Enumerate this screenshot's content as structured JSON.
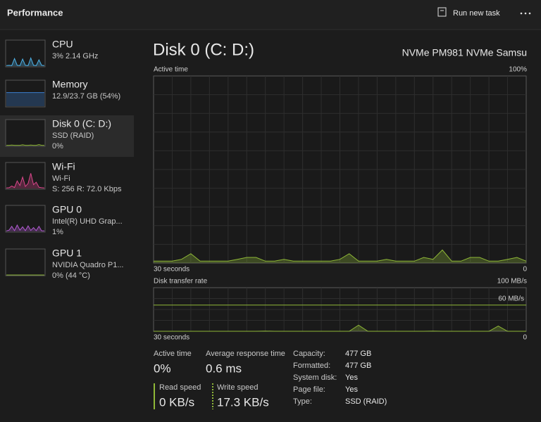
{
  "header": {
    "title": "Performance",
    "run_new_task": "Run new task"
  },
  "sidebar": [
    {
      "name": "CPU",
      "line1": "3% 2.14 GHz",
      "line2": null,
      "color": "#4fb3e8",
      "graph": [
        2,
        3,
        2,
        30,
        3,
        2,
        28,
        3,
        2,
        32,
        3,
        2,
        25,
        3,
        2
      ]
    },
    {
      "name": "Memory",
      "line1": "12.9/23.7 GB (54%)",
      "line2": null,
      "color": "#3b7fd0",
      "graph": [
        54,
        54,
        54,
        54,
        54,
        54,
        54,
        54,
        54,
        54,
        54,
        54,
        54,
        54,
        54
      ]
    },
    {
      "name": "Disk 0 (C: D:)",
      "line1": "SSD (RAID)",
      "line2": "0%",
      "color": "#8fb837",
      "graph": [
        1,
        1,
        2,
        1,
        1,
        1,
        3,
        1,
        1,
        2,
        1,
        1,
        4,
        1,
        1
      ]
    },
    {
      "name": "Wi-Fi",
      "line1": "Wi-Fi",
      "line2": "S: 256 R: 72.0 Kbps",
      "color": "#d9468a",
      "graph": [
        2,
        3,
        10,
        4,
        30,
        12,
        45,
        8,
        20,
        60,
        15,
        25,
        5,
        3,
        2
      ]
    },
    {
      "name": "GPU 0",
      "line1": "Intel(R) UHD Grap...",
      "line2": "1%",
      "color": "#b05ad0",
      "graph": [
        2,
        5,
        20,
        3,
        25,
        5,
        18,
        3,
        22,
        4,
        15,
        3,
        20,
        2,
        2
      ]
    },
    {
      "name": "GPU 1",
      "line1": "NVIDIA Quadro P1...",
      "line2": "0% (44 °C)",
      "color": "#8fb837",
      "graph": [
        0,
        0,
        0,
        0,
        0,
        0,
        0,
        0,
        0,
        0,
        0,
        0,
        0,
        0,
        0
      ]
    }
  ],
  "main": {
    "title": "Disk 0 (C: D:)",
    "model": "NVMe PM981 NVMe Samsu",
    "color": "#8fb837",
    "active_time": {
      "label": "Active time",
      "max_label": "100%",
      "duration_label": "30 seconds",
      "min_label": "0",
      "ylim": [
        0,
        100
      ],
      "values": [
        1,
        1,
        1,
        2,
        5,
        1,
        1,
        1,
        1,
        2,
        3,
        3,
        1,
        1,
        2,
        1,
        1,
        1,
        1,
        1,
        2,
        5,
        1,
        1,
        1,
        2,
        1,
        1,
        1,
        3,
        2,
        7,
        1,
        1,
        3,
        3,
        1,
        1,
        2,
        3,
        1
      ]
    },
    "transfer_rate": {
      "label": "Disk transfer rate",
      "max_label": "100 MB/s",
      "scale_label": "60 MB/s",
      "scale_value": 60,
      "duration_label": "30 seconds",
      "min_label": "0",
      "ylim": [
        0,
        100
      ],
      "values": [
        0,
        0,
        0,
        0,
        0,
        0,
        0,
        0,
        0,
        0,
        0,
        0,
        0.5,
        0,
        0,
        0,
        0,
        0,
        0,
        0,
        0,
        0,
        14,
        0,
        0,
        0,
        0,
        0,
        0,
        0,
        0.5,
        0,
        0,
        0,
        0,
        0,
        0,
        12,
        0,
        0,
        0
      ]
    }
  },
  "stats": [
    {
      "label": "Active time",
      "value": "0%"
    },
    {
      "label": "Average response time",
      "value": "0.6 ms"
    }
  ],
  "speeds": [
    {
      "label": "Read speed",
      "value": "0 KB/s"
    },
    {
      "label": "Write speed",
      "value": "17.3 KB/s"
    }
  ],
  "properties": [
    {
      "label": "Capacity:",
      "value": "477 GB"
    },
    {
      "label": "Formatted:",
      "value": "477 GB"
    },
    {
      "label": "System disk:",
      "value": "Yes"
    },
    {
      "label": "Page file:",
      "value": "Yes"
    },
    {
      "label": "Type:",
      "value": "SSD (RAID)"
    }
  ]
}
